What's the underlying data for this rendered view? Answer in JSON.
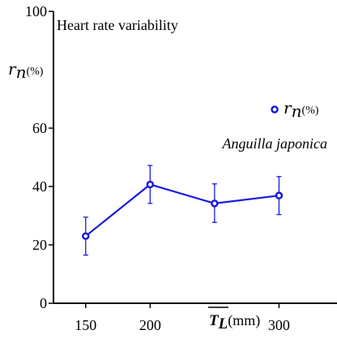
{
  "chart_data": {
    "type": "line",
    "title": "Heart rate variability",
    "ylabel": "r",
    "ylabel_sub": "n",
    "ylabel_unit": "(%)",
    "xlabel_symbol": "T",
    "xlabel_sub": "L",
    "xlabel_unit": "(mm)",
    "species": "Anguilla japonica",
    "xlim": [
      125,
      345
    ],
    "ylim": [
      0,
      100
    ],
    "x_ticks": [
      150,
      200,
      300
    ],
    "x_tick_labels": [
      "150",
      "200",
      "300"
    ],
    "y_ticks": [
      0,
      20,
      40,
      60,
      100
    ],
    "y_tick_labels": [
      "0",
      "20",
      "40",
      "60",
      "100"
    ],
    "grid": false,
    "legend_position": "right",
    "series": [
      {
        "name": "r",
        "name_sub": "n",
        "name_unit": "(%)",
        "color": "#1a1adc",
        "marker": "open-circle",
        "x": [
          150,
          200,
          250,
          300
        ],
        "values": [
          23,
          40.7,
          34.2,
          36.9
        ],
        "error_low": [
          16.5,
          34.2,
          27.7,
          30.4
        ],
        "error_high": [
          29.5,
          47.2,
          40.9,
          43.4
        ]
      }
    ]
  }
}
